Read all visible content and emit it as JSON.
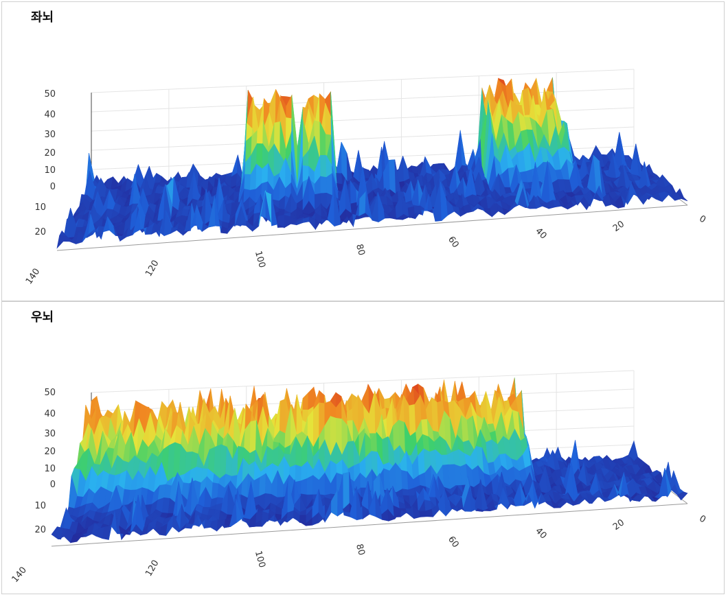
{
  "panels": [
    {
      "title": "좌뇌"
    },
    {
      "title": "우뇌"
    }
  ],
  "chart_data": [
    {
      "type": "surface3d",
      "title": "좌뇌",
      "x_ticks": [
        "140",
        "120",
        "100",
        "80",
        "60",
        "40",
        "20",
        "0"
      ],
      "y_ticks": [
        "20",
        "10"
      ],
      "z_ticks": [
        "50",
        "40",
        "30",
        "20",
        "10",
        "0"
      ],
      "xlim": [
        0,
        140
      ],
      "ylim": [
        0,
        25
      ],
      "zlim": [
        0,
        50
      ],
      "colorscale": [
        "#241f8f",
        "#1f5fd8",
        "#2ab0f0",
        "#3fd06a",
        "#e6e33a",
        "#f08a22",
        "#d9341e"
      ],
      "high_regions": [
        {
          "x_range": [
            88,
            100
          ],
          "z": 50
        },
        {
          "x_range": [
            78,
            86
          ],
          "z": 50
        },
        {
          "x_range": [
            20,
            40
          ],
          "z": 50
        }
      ]
    },
    {
      "type": "surface3d",
      "title": "우뇌",
      "x_ticks": [
        "140",
        "120",
        "100",
        "80",
        "60",
        "40",
        "20",
        "0"
      ],
      "y_ticks": [
        "20",
        "10"
      ],
      "z_ticks": [
        "50",
        "40",
        "30",
        "20",
        "10",
        "0"
      ],
      "xlim": [
        0,
        140
      ],
      "ylim": [
        0,
        25
      ],
      "zlim": [
        0,
        50
      ],
      "colorscale": [
        "#241f8f",
        "#1f5fd8",
        "#2ab0f0",
        "#3fd06a",
        "#e6e33a",
        "#f08a22",
        "#d9341e"
      ],
      "high_regions": [
        {
          "x_range": [
            30,
            140
          ],
          "z": 50
        }
      ]
    }
  ]
}
